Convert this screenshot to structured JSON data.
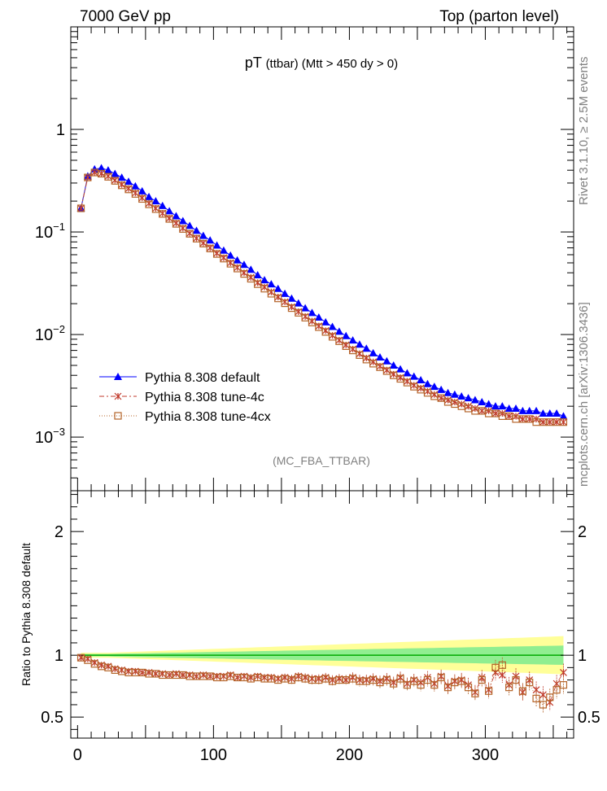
{
  "header": {
    "left_label": "7000 GeV pp",
    "right_label": "Top (parton level)"
  },
  "side_labels": {
    "rivet": "Rivet 3.1.10, ≥ 2.5M events",
    "mcplots": "mcplots.cern.ch [arXiv:1306.3436]"
  },
  "colors": {
    "default": "#0000ff",
    "tune4c": "#c0392b",
    "tune4cx": "#b5652a",
    "band_inner": "#90ee90",
    "band_outer": "#ffff99",
    "reference_line": "#00aa00"
  },
  "chart_data": [
    {
      "type": "line",
      "title": "pT",
      "title_sub": "(ttbar) (Mtt > 450 dy > 0)",
      "watermark": "(MC_FBA_TTBAR)",
      "yscale": "log",
      "xlim": [
        -5,
        365
      ],
      "ylim": [
        0.0003,
        10
      ],
      "x": [
        2.5,
        7.5,
        12.5,
        17.5,
        22.5,
        27.5,
        32.5,
        37.5,
        42.5,
        47.5,
        52.5,
        57.5,
        62.5,
        67.5,
        72.5,
        77.5,
        82.5,
        87.5,
        92.5,
        97.5,
        102.5,
        107.5,
        112.5,
        117.5,
        122.5,
        127.5,
        132.5,
        137.5,
        142.5,
        147.5,
        152.5,
        157.5,
        162.5,
        167.5,
        172.5,
        177.5,
        182.5,
        187.5,
        192.5,
        197.5,
        202.5,
        207.5,
        212.5,
        217.5,
        222.5,
        227.5,
        232.5,
        237.5,
        242.5,
        247.5,
        252.5,
        257.5,
        262.5,
        267.5,
        272.5,
        277.5,
        282.5,
        287.5,
        292.5,
        297.5,
        302.5,
        307.5,
        312.5,
        317.5,
        322.5,
        327.5,
        332.5,
        337.5,
        342.5,
        347.5,
        352.5,
        357.5
      ],
      "yticks": [
        {
          "value": 0.001,
          "base": "10",
          "exp": "−3"
        },
        {
          "value": 0.01,
          "base": "10",
          "exp": "−2"
        },
        {
          "value": 0.1,
          "base": "10",
          "exp": "−1"
        },
        {
          "value": 1,
          "base": "1",
          "exp": ""
        }
      ],
      "series": [
        {
          "name": "Pythia 8.308 default",
          "key": "default",
          "marker": "triangle",
          "values": [
            0.17,
            0.35,
            0.41,
            0.42,
            0.4,
            0.37,
            0.34,
            0.31,
            0.28,
            0.25,
            0.22,
            0.2,
            0.18,
            0.16,
            0.143,
            0.128,
            0.115,
            0.103,
            0.092,
            0.083,
            0.074,
            0.066,
            0.059,
            0.053,
            0.048,
            0.043,
            0.038,
            0.034,
            0.031,
            0.028,
            0.025,
            0.0225,
            0.0202,
            0.0181,
            0.0163,
            0.0147,
            0.0132,
            0.0119,
            0.0107,
            0.0097,
            0.0088,
            0.008,
            0.0073,
            0.0066,
            0.006,
            0.0055,
            0.005,
            0.0046,
            0.0042,
            0.0039,
            0.0036,
            0.0033,
            0.0031,
            0.0029,
            0.0027,
            0.0026,
            0.0025,
            0.0024,
            0.0023,
            0.0022,
            0.0021,
            0.002,
            0.002,
            0.0019,
            0.0019,
            0.0018,
            0.0018,
            0.0018,
            0.0017,
            0.0017,
            0.0017,
            0.0016
          ]
        },
        {
          "name": "Pythia 8.308 tune-4c",
          "key": "tune4c",
          "marker": "star",
          "values": [
            0.17,
            0.34,
            0.38,
            0.37,
            0.35,
            0.32,
            0.29,
            0.265,
            0.24,
            0.215,
            0.19,
            0.17,
            0.152,
            0.136,
            0.122,
            0.109,
            0.097,
            0.087,
            0.078,
            0.07,
            0.062,
            0.056,
            0.05,
            0.045,
            0.04,
            0.036,
            0.032,
            0.029,
            0.026,
            0.0232,
            0.0208,
            0.0186,
            0.0167,
            0.015,
            0.0135,
            0.0121,
            0.0109,
            0.0098,
            0.0088,
            0.0079,
            0.0072,
            0.0065,
            0.0059,
            0.0054,
            0.0049,
            0.0045,
            0.0041,
            0.0038,
            0.0035,
            0.0032,
            0.003,
            0.0028,
            0.0026,
            0.0024,
            0.0023,
            0.0022,
            0.0021,
            0.002,
            0.0019,
            0.0018,
            0.0018,
            0.0017,
            0.0017,
            0.0016,
            0.0016,
            0.0015,
            0.0015,
            0.0015,
            0.0014,
            0.0014,
            0.0014,
            0.0014
          ]
        },
        {
          "name": "Pythia 8.308 tune-4cx",
          "key": "tune4cx",
          "marker": "square",
          "values": [
            0.17,
            0.34,
            0.38,
            0.37,
            0.345,
            0.315,
            0.285,
            0.26,
            0.235,
            0.21,
            0.186,
            0.167,
            0.15,
            0.134,
            0.12,
            0.107,
            0.096,
            0.086,
            0.077,
            0.069,
            0.061,
            0.055,
            0.049,
            0.044,
            0.039,
            0.035,
            0.031,
            0.028,
            0.025,
            0.0225,
            0.0202,
            0.0181,
            0.0163,
            0.0146,
            0.0131,
            0.0118,
            0.0106,
            0.0095,
            0.0086,
            0.0077,
            0.007,
            0.0063,
            0.0057,
            0.0052,
            0.0048,
            0.0044,
            0.004,
            0.0037,
            0.0034,
            0.0031,
            0.0029,
            0.0027,
            0.0025,
            0.0024,
            0.0022,
            0.0021,
            0.002,
            0.0019,
            0.0018,
            0.0018,
            0.0017,
            0.0017,
            0.0016,
            0.0016,
            0.0015,
            0.0015,
            0.0015,
            0.0014,
            0.0014,
            0.0014,
            0.0014,
            0.0014
          ]
        }
      ]
    },
    {
      "type": "scatter",
      "ylabel": "Ratio to Pythia 8.308 default",
      "xlim": [
        -5,
        365
      ],
      "ylim": [
        0.33,
        2.33
      ],
      "yticks": [
        0.5,
        1,
        2
      ],
      "xticks": [
        0,
        100,
        200,
        300
      ],
      "x": [
        2.5,
        7.5,
        12.5,
        17.5,
        22.5,
        27.5,
        32.5,
        37.5,
        42.5,
        47.5,
        52.5,
        57.5,
        62.5,
        67.5,
        72.5,
        77.5,
        82.5,
        87.5,
        92.5,
        97.5,
        102.5,
        107.5,
        112.5,
        117.5,
        122.5,
        127.5,
        132.5,
        137.5,
        142.5,
        147.5,
        152.5,
        157.5,
        162.5,
        167.5,
        172.5,
        177.5,
        182.5,
        187.5,
        192.5,
        197.5,
        202.5,
        207.5,
        212.5,
        217.5,
        222.5,
        227.5,
        232.5,
        237.5,
        242.5,
        247.5,
        252.5,
        257.5,
        262.5,
        267.5,
        272.5,
        277.5,
        282.5,
        287.5,
        292.5,
        297.5,
        302.5,
        307.5,
        312.5,
        317.5,
        322.5,
        327.5,
        332.5,
        337.5,
        342.5,
        347.5,
        352.5,
        357.5
      ],
      "band_inner": [
        0.01,
        0.01,
        0.01,
        0.01,
        0.01,
        0.012,
        0.013,
        0.014,
        0.015,
        0.016,
        0.017,
        0.018,
        0.019,
        0.02,
        0.021,
        0.022,
        0.023,
        0.024,
        0.025,
        0.026,
        0.027,
        0.028,
        0.029,
        0.03,
        0.031,
        0.032,
        0.033,
        0.034,
        0.035,
        0.036,
        0.037,
        0.038,
        0.039,
        0.04,
        0.041,
        0.042,
        0.043,
        0.044,
        0.045,
        0.046,
        0.047,
        0.048,
        0.049,
        0.05,
        0.051,
        0.052,
        0.053,
        0.054,
        0.055,
        0.056,
        0.057,
        0.058,
        0.059,
        0.06,
        0.061,
        0.062,
        0.063,
        0.064,
        0.065,
        0.066,
        0.067,
        0.068,
        0.069,
        0.07,
        0.071,
        0.072,
        0.073,
        0.074,
        0.075,
        0.076,
        0.077,
        0.078
      ],
      "band_outer": [
        0.02,
        0.02,
        0.02,
        0.02,
        0.02,
        0.022,
        0.024,
        0.026,
        0.028,
        0.03,
        0.032,
        0.034,
        0.036,
        0.038,
        0.04,
        0.042,
        0.044,
        0.046,
        0.048,
        0.05,
        0.052,
        0.054,
        0.056,
        0.058,
        0.06,
        0.062,
        0.064,
        0.066,
        0.068,
        0.07,
        0.072,
        0.074,
        0.076,
        0.078,
        0.08,
        0.082,
        0.084,
        0.086,
        0.088,
        0.09,
        0.092,
        0.094,
        0.096,
        0.098,
        0.1,
        0.102,
        0.104,
        0.106,
        0.108,
        0.11,
        0.112,
        0.114,
        0.116,
        0.118,
        0.12,
        0.122,
        0.124,
        0.126,
        0.128,
        0.13,
        0.132,
        0.134,
        0.136,
        0.138,
        0.14,
        0.142,
        0.144,
        0.146,
        0.148,
        0.15,
        0.152,
        0.155
      ],
      "series": [
        {
          "name": "Pythia 8.308 tune-4c",
          "key": "tune4c",
          "marker": "star",
          "values": [
            0.98,
            0.97,
            0.94,
            0.92,
            0.91,
            0.89,
            0.88,
            0.87,
            0.87,
            0.86,
            0.86,
            0.85,
            0.85,
            0.84,
            0.85,
            0.84,
            0.84,
            0.83,
            0.84,
            0.83,
            0.83,
            0.83,
            0.84,
            0.82,
            0.83,
            0.82,
            0.83,
            0.82,
            0.82,
            0.81,
            0.82,
            0.81,
            0.83,
            0.82,
            0.81,
            0.81,
            0.82,
            0.8,
            0.81,
            0.8,
            0.82,
            0.8,
            0.8,
            0.81,
            0.79,
            0.81,
            0.78,
            0.82,
            0.77,
            0.8,
            0.78,
            0.82,
            0.77,
            0.83,
            0.75,
            0.79,
            0.8,
            0.76,
            0.7,
            0.82,
            0.72,
            0.86,
            0.84,
            0.76,
            0.83,
            0.7,
            0.8,
            0.72,
            0.68,
            0.62,
            0.77,
            0.86
          ],
          "errors": [
            0.005,
            0.005,
            0.006,
            0.006,
            0.007,
            0.008,
            0.008,
            0.009,
            0.01,
            0.011,
            0.012,
            0.013,
            0.013,
            0.014,
            0.015,
            0.016,
            0.017,
            0.018,
            0.019,
            0.02,
            0.021,
            0.022,
            0.023,
            0.024,
            0.025,
            0.026,
            0.027,
            0.028,
            0.029,
            0.03,
            0.031,
            0.032,
            0.033,
            0.034,
            0.035,
            0.036,
            0.037,
            0.038,
            0.039,
            0.04,
            0.041,
            0.042,
            0.043,
            0.044,
            0.045,
            0.046,
            0.047,
            0.048,
            0.049,
            0.05,
            0.051,
            0.052,
            0.053,
            0.054,
            0.055,
            0.056,
            0.057,
            0.058,
            0.059,
            0.06,
            0.061,
            0.062,
            0.063,
            0.064,
            0.065,
            0.066,
            0.067,
            0.068,
            0.069,
            0.07,
            0.071,
            0.072
          ]
        },
        {
          "name": "Pythia 8.308 tune-4cx",
          "key": "tune4cx",
          "marker": "square",
          "values": [
            0.98,
            0.96,
            0.93,
            0.91,
            0.9,
            0.88,
            0.87,
            0.86,
            0.86,
            0.86,
            0.85,
            0.85,
            0.84,
            0.84,
            0.84,
            0.84,
            0.83,
            0.83,
            0.83,
            0.83,
            0.82,
            0.82,
            0.83,
            0.82,
            0.82,
            0.81,
            0.82,
            0.81,
            0.81,
            0.8,
            0.81,
            0.8,
            0.82,
            0.81,
            0.8,
            0.8,
            0.81,
            0.79,
            0.8,
            0.8,
            0.81,
            0.79,
            0.79,
            0.8,
            0.78,
            0.8,
            0.77,
            0.81,
            0.76,
            0.79,
            0.76,
            0.8,
            0.76,
            0.82,
            0.74,
            0.78,
            0.79,
            0.74,
            0.69,
            0.8,
            0.71,
            0.9,
            0.92,
            0.74,
            0.8,
            0.71,
            0.78,
            0.65,
            0.6,
            0.66,
            0.72,
            0.76
          ],
          "errors": [
            0.005,
            0.005,
            0.006,
            0.006,
            0.007,
            0.008,
            0.008,
            0.009,
            0.01,
            0.011,
            0.012,
            0.013,
            0.013,
            0.014,
            0.015,
            0.016,
            0.017,
            0.018,
            0.019,
            0.02,
            0.021,
            0.022,
            0.023,
            0.024,
            0.025,
            0.026,
            0.027,
            0.028,
            0.029,
            0.03,
            0.031,
            0.032,
            0.033,
            0.034,
            0.035,
            0.036,
            0.037,
            0.038,
            0.039,
            0.04,
            0.041,
            0.042,
            0.043,
            0.044,
            0.045,
            0.046,
            0.047,
            0.048,
            0.049,
            0.05,
            0.051,
            0.052,
            0.053,
            0.054,
            0.055,
            0.056,
            0.057,
            0.058,
            0.059,
            0.06,
            0.061,
            0.062,
            0.063,
            0.064,
            0.065,
            0.066,
            0.067,
            0.068,
            0.069,
            0.07,
            0.071,
            0.072
          ]
        }
      ]
    }
  ]
}
